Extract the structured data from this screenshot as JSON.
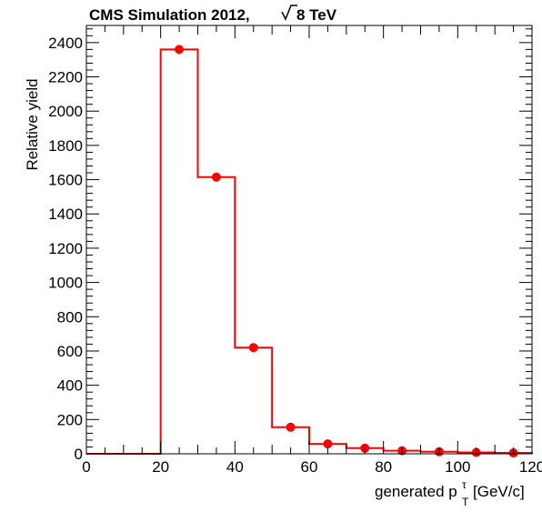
{
  "chart_data": {
    "type": "bar",
    "title": "CMS Simulation 2012,",
    "title_energy": "8 TeV",
    "xlabel": {
      "main": "generated p",
      "sub": "T",
      "sup": "τ",
      "unit": "[GeV/c]"
    },
    "ylabel": "Relative yield",
    "xlim": [
      0,
      120
    ],
    "ylim": [
      0,
      2500
    ],
    "x_ticks": [
      0,
      20,
      40,
      60,
      80,
      100,
      120
    ],
    "y_ticks": [
      0,
      200,
      400,
      600,
      800,
      1000,
      1200,
      1400,
      1600,
      1800,
      2000,
      2200,
      2400
    ],
    "bin_edges": [
      0,
      10,
      20,
      30,
      40,
      50,
      60,
      70,
      80,
      90,
      100,
      110,
      120
    ],
    "bin_centers": [
      5,
      15,
      25,
      35,
      45,
      55,
      65,
      75,
      85,
      95,
      105,
      115
    ],
    "values": [
      0,
      0,
      2360,
      1615,
      620,
      155,
      58,
      33,
      18,
      12,
      8,
      5
    ],
    "errors": [
      0,
      0,
      5,
      4,
      3,
      2,
      1.5,
      1,
      1,
      1,
      1,
      1
    ],
    "color": "#ff0000",
    "grid": false,
    "legend": "none"
  }
}
